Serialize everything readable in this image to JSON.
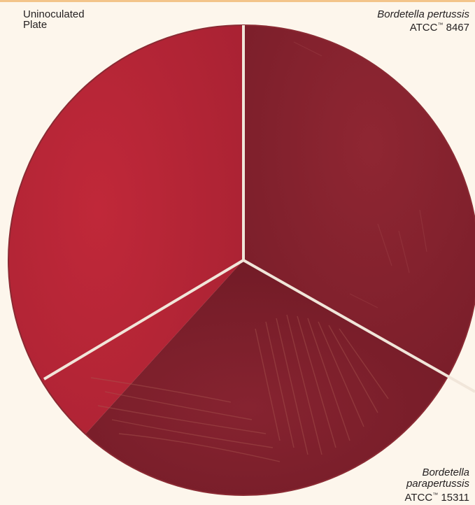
{
  "labels": {
    "uninoculated": {
      "line1": "Uninoculated",
      "line2": "Plate"
    },
    "pertussis": {
      "species": "Bordetella pertussis",
      "atcc": "ATCC",
      "tm": "™",
      "strain": " 8467"
    },
    "parapertussis": {
      "genus": "Bordetella",
      "species": "parapertussis",
      "atcc": "ATCC",
      "tm": "™",
      "strain": " 15311"
    }
  },
  "colors": {
    "background": "#fdf6ec",
    "uninoculated_agar": "#b52536",
    "pertussis_agar": "#882330",
    "parapertussis_agar": "#7e1f2b",
    "divider": "#f1e6da",
    "top_rule": "#f3c48a"
  }
}
